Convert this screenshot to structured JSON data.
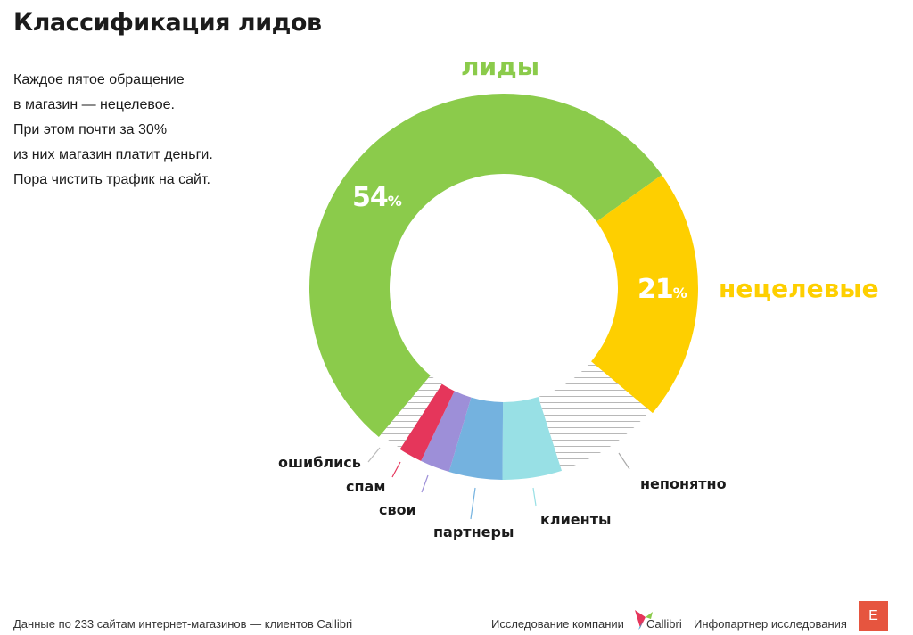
{
  "title": "Классификация лидов",
  "description": [
    "Каждое пятое обращение",
    "в магазин — нецелевое.",
    "При этом почти за 30%",
    "из них магазин платит деньги.",
    "Пора чистить трафик на сайт."
  ],
  "chart_data": {
    "type": "pie",
    "variant": "donut",
    "start_angle_deg": 220,
    "slices": [
      {
        "label": "лиды",
        "value": 54,
        "value_label": "54",
        "color": "#8bcb4b",
        "hatched": false
      },
      {
        "label": "нецелевые",
        "value": 21,
        "value_label": "21",
        "color": "#fecf00",
        "hatched": false
      },
      {
        "label": "непонятно",
        "value": 9,
        "color": "#b5b5b5",
        "hatched": true
      },
      {
        "label": "клиенты",
        "value": 5,
        "color": "#98e0e5",
        "hatched": false
      },
      {
        "label": "партнеры",
        "value": 4.5,
        "color": "#74b2df",
        "hatched": false
      },
      {
        "label": "свои",
        "value": 2.5,
        "color": "#9d8fd8",
        "hatched": false
      },
      {
        "label": "спам",
        "value": 2,
        "color": "#e5365b",
        "hatched": false
      },
      {
        "label": "ошиблись",
        "value": 2,
        "color": "#b5b5b5",
        "hatched": true
      }
    ],
    "percent_sign": "%"
  },
  "footer": {
    "source": "Данные по 233 сайтам интернет-магазинов — клиентов Callibri",
    "research_by": "Исследование компании",
    "company": "Callibri",
    "infopartner": "Инфопартнер исследования",
    "partner_logo_letter": "E"
  }
}
